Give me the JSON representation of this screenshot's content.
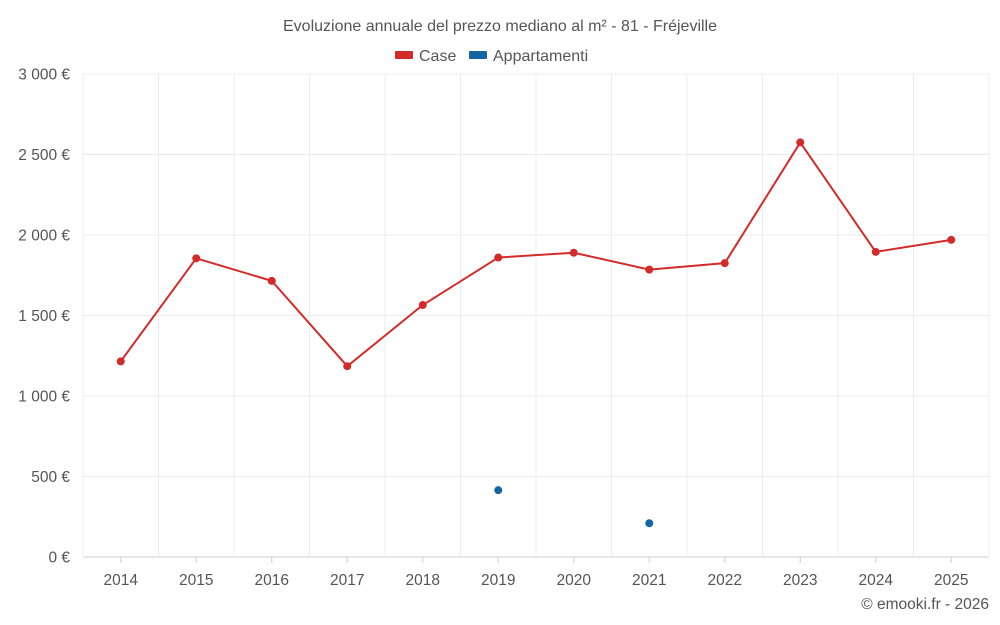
{
  "chart_data": {
    "type": "line",
    "title": "Evoluzione annuale del prezzo mediano al m² - 81 - Fréjeville",
    "categories": [
      "2014",
      "2015",
      "2016",
      "2017",
      "2018",
      "2019",
      "2020",
      "2021",
      "2022",
      "2023",
      "2024",
      "2025"
    ],
    "series": [
      {
        "name": "Case",
        "color": "#d32a2a",
        "values": [
          1215,
          1855,
          1715,
          1185,
          1565,
          1860,
          1890,
          1785,
          1825,
          2575,
          1895,
          1970
        ]
      },
      {
        "name": "Appartamenti",
        "color": "#1465a3",
        "values": [
          null,
          null,
          null,
          null,
          null,
          415,
          null,
          210,
          null,
          null,
          null,
          null
        ]
      }
    ],
    "ylim": [
      0,
      3000
    ],
    "yticks": [
      0,
      500,
      1000,
      1500,
      2000,
      2500,
      3000
    ],
    "ytick_labels": [
      "0 €",
      "500 €",
      "1 000 €",
      "1 500 €",
      "2 000 €",
      "2 500 €",
      "3 000 €"
    ],
    "xlabel": "",
    "ylabel": "",
    "grid": true,
    "legend_position": "top-center"
  },
  "credit": "© emooki.fr - 2026"
}
